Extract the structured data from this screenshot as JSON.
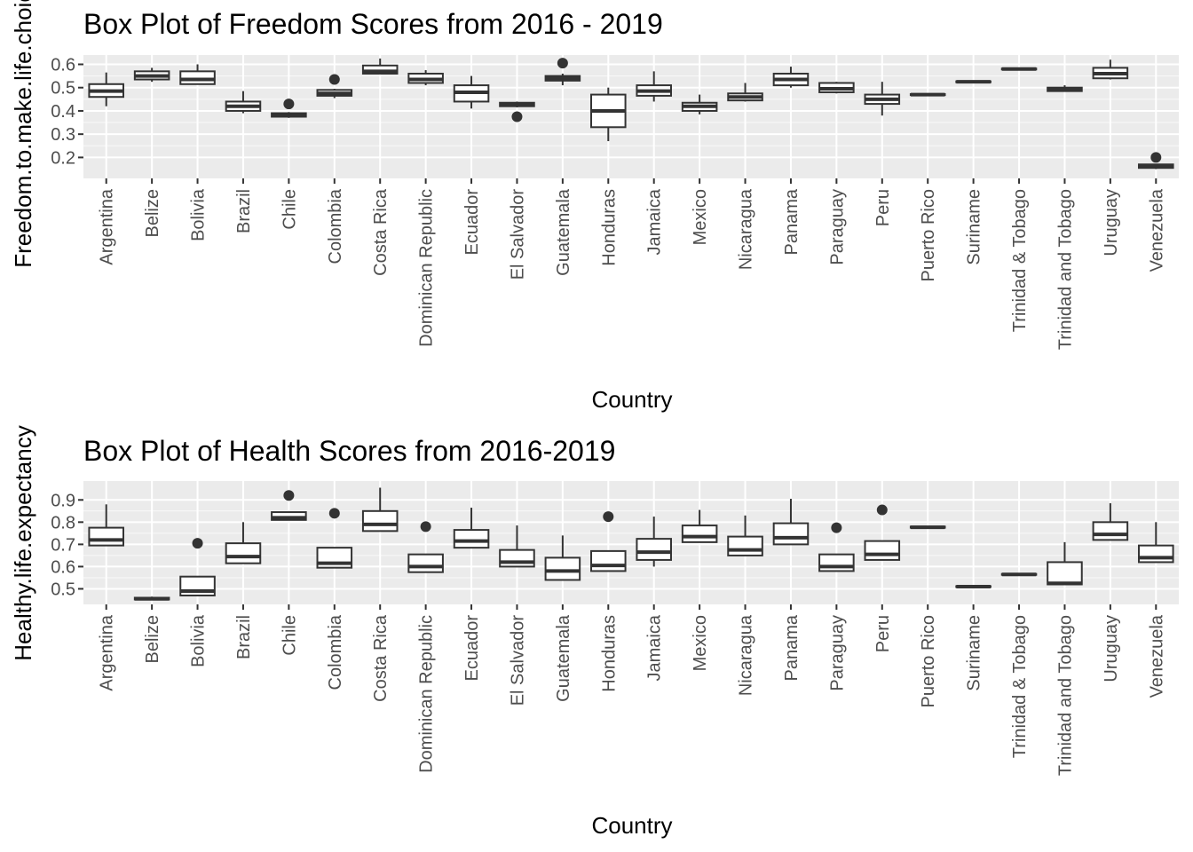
{
  "chart_data": [
    {
      "type": "boxplot",
      "title": "Box Plot of Freedom Scores from 2016 - 2019",
      "xlabel": "Country",
      "ylabel": "Freedom.to.make.life.choices",
      "ylim": [
        0.11,
        0.64
      ],
      "yticks": [
        0.2,
        0.3,
        0.4,
        0.5,
        0.6
      ],
      "ytick_labels": [
        "0.2",
        "0.3",
        "0.4",
        "0.5",
        "0.6"
      ],
      "grid": true,
      "categories": [
        "Argentina",
        "Belize",
        "Bolivia",
        "Brazil",
        "Chile",
        "Colombia",
        "Costa Rica",
        "Dominican Republic",
        "Ecuador",
        "El Salvador",
        "Guatemala",
        "Honduras",
        "Jamaica",
        "Mexico",
        "Nicaragua",
        "Panama",
        "Paraguay",
        "Peru",
        "Puerto Rico",
        "Suriname",
        "Trinidad & Tobago",
        "Trinidad and Tobago",
        "Uruguay",
        "Venezuela"
      ],
      "boxes": [
        {
          "min": 0.42,
          "q1": 0.46,
          "median": 0.485,
          "q3": 0.515,
          "max": 0.565,
          "outliers": []
        },
        {
          "min": 0.525,
          "q1": 0.535,
          "median": 0.55,
          "q3": 0.57,
          "max": 0.585,
          "outliers": []
        },
        {
          "min": 0.515,
          "q1": 0.515,
          "median": 0.535,
          "q3": 0.57,
          "max": 0.6,
          "outliers": []
        },
        {
          "min": 0.39,
          "q1": 0.4,
          "median": 0.42,
          "q3": 0.44,
          "max": 0.485,
          "outliers": []
        },
        {
          "min": 0.37,
          "q1": 0.375,
          "median": 0.38,
          "q3": 0.39,
          "max": 0.395,
          "outliers": [
            0.43
          ]
        },
        {
          "min": 0.455,
          "q1": 0.465,
          "median": 0.475,
          "q3": 0.49,
          "max": 0.495,
          "outliers": [
            0.535
          ]
        },
        {
          "min": 0.56,
          "q1": 0.56,
          "median": 0.57,
          "q3": 0.595,
          "max": 0.625,
          "outliers": []
        },
        {
          "min": 0.51,
          "q1": 0.52,
          "median": 0.535,
          "q3": 0.56,
          "max": 0.575,
          "outliers": []
        },
        {
          "min": 0.41,
          "q1": 0.44,
          "median": 0.48,
          "q3": 0.51,
          "max": 0.55,
          "outliers": []
        },
        {
          "min": 0.415,
          "q1": 0.42,
          "median": 0.425,
          "q3": 0.435,
          "max": 0.44,
          "outliers": [
            0.375
          ]
        },
        {
          "min": 0.51,
          "q1": 0.53,
          "median": 0.54,
          "q3": 0.55,
          "max": 0.56,
          "outliers": [
            0.605
          ]
        },
        {
          "min": 0.27,
          "q1": 0.33,
          "median": 0.4,
          "q3": 0.47,
          "max": 0.5,
          "outliers": []
        },
        {
          "min": 0.44,
          "q1": 0.465,
          "median": 0.485,
          "q3": 0.51,
          "max": 0.57,
          "outliers": []
        },
        {
          "min": 0.385,
          "q1": 0.4,
          "median": 0.42,
          "q3": 0.435,
          "max": 0.47,
          "outliers": []
        },
        {
          "min": 0.44,
          "q1": 0.445,
          "median": 0.46,
          "q3": 0.475,
          "max": 0.52,
          "outliers": []
        },
        {
          "min": 0.5,
          "q1": 0.51,
          "median": 0.535,
          "q3": 0.56,
          "max": 0.59,
          "outliers": []
        },
        {
          "min": 0.475,
          "q1": 0.48,
          "median": 0.495,
          "q3": 0.52,
          "max": 0.525,
          "outliers": []
        },
        {
          "min": 0.38,
          "q1": 0.43,
          "median": 0.45,
          "q3": 0.47,
          "max": 0.525,
          "outliers": []
        },
        {
          "min": 0.468,
          "q1": 0.468,
          "median": 0.47,
          "q3": 0.472,
          "max": 0.472,
          "outliers": []
        },
        {
          "min": 0.523,
          "q1": 0.523,
          "median": 0.525,
          "q3": 0.527,
          "max": 0.527,
          "outliers": []
        },
        {
          "min": 0.578,
          "q1": 0.578,
          "median": 0.58,
          "q3": 0.582,
          "max": 0.582,
          "outliers": []
        },
        {
          "min": 0.485,
          "q1": 0.485,
          "median": 0.495,
          "q3": 0.5,
          "max": 0.51,
          "outliers": []
        },
        {
          "min": 0.535,
          "q1": 0.54,
          "median": 0.56,
          "q3": 0.585,
          "max": 0.62,
          "outliers": []
        },
        {
          "min": 0.15,
          "q1": 0.155,
          "median": 0.16,
          "q3": 0.17,
          "max": 0.17,
          "outliers": [
            0.2
          ]
        }
      ]
    },
    {
      "type": "boxplot",
      "title": "Box Plot of Health Scores from 2016-2019",
      "xlabel": "Country",
      "ylabel": "Healthy.life.expectancy",
      "ylim": [
        0.43,
        0.985
      ],
      "yticks": [
        0.5,
        0.6,
        0.7,
        0.8,
        0.9
      ],
      "ytick_labels": [
        "0.5",
        "0.6",
        "0.7",
        "0.8",
        "0.9"
      ],
      "grid": true,
      "categories": [
        "Argentina",
        "Belize",
        "Bolivia",
        "Brazil",
        "Chile",
        "Colombia",
        "Costa Rica",
        "Dominican Republic",
        "Ecuador",
        "El Salvador",
        "Guatemala",
        "Honduras",
        "Jamaica",
        "Mexico",
        "Nicaragua",
        "Panama",
        "Paraguay",
        "Peru",
        "Puerto Rico",
        "Suriname",
        "Trinidad & Tobago",
        "Trinidad and Tobago",
        "Uruguay",
        "Venezuela"
      ],
      "boxes": [
        {
          "min": 0.695,
          "q1": 0.695,
          "median": 0.72,
          "q3": 0.775,
          "max": 0.88,
          "outliers": []
        },
        {
          "min": 0.45,
          "q1": 0.452,
          "median": 0.455,
          "q3": 0.46,
          "max": 0.465,
          "outliers": []
        },
        {
          "min": 0.47,
          "q1": 0.47,
          "median": 0.49,
          "q3": 0.555,
          "max": 0.555,
          "outliers": [
            0.705
          ]
        },
        {
          "min": 0.615,
          "q1": 0.615,
          "median": 0.645,
          "q3": 0.705,
          "max": 0.8,
          "outliers": []
        },
        {
          "min": 0.81,
          "q1": 0.81,
          "median": 0.82,
          "q3": 0.845,
          "max": 0.845,
          "outliers": [
            0.92
          ]
        },
        {
          "min": 0.595,
          "q1": 0.595,
          "median": 0.615,
          "q3": 0.685,
          "max": 0.685,
          "outliers": [
            0.84
          ]
        },
        {
          "min": 0.76,
          "q1": 0.76,
          "median": 0.79,
          "q3": 0.85,
          "max": 0.955,
          "outliers": []
        },
        {
          "min": 0.575,
          "q1": 0.575,
          "median": 0.6,
          "q3": 0.655,
          "max": 0.655,
          "outliers": [
            0.78
          ]
        },
        {
          "min": 0.685,
          "q1": 0.685,
          "median": 0.715,
          "q3": 0.765,
          "max": 0.865,
          "outliers": []
        },
        {
          "min": 0.6,
          "q1": 0.6,
          "median": 0.62,
          "q3": 0.675,
          "max": 0.785,
          "outliers": []
        },
        {
          "min": 0.54,
          "q1": 0.54,
          "median": 0.58,
          "q3": 0.64,
          "max": 0.74,
          "outliers": []
        },
        {
          "min": 0.58,
          "q1": 0.58,
          "median": 0.605,
          "q3": 0.67,
          "max": 0.67,
          "outliers": [
            0.825
          ]
        },
        {
          "min": 0.6,
          "q1": 0.63,
          "median": 0.665,
          "q3": 0.725,
          "max": 0.825,
          "outliers": []
        },
        {
          "min": 0.71,
          "q1": 0.71,
          "median": 0.735,
          "q3": 0.785,
          "max": 0.855,
          "outliers": []
        },
        {
          "min": 0.65,
          "q1": 0.65,
          "median": 0.675,
          "q3": 0.735,
          "max": 0.83,
          "outliers": []
        },
        {
          "min": 0.7,
          "q1": 0.7,
          "median": 0.73,
          "q3": 0.795,
          "max": 0.905,
          "outliers": []
        },
        {
          "min": 0.58,
          "q1": 0.58,
          "median": 0.6,
          "q3": 0.655,
          "max": 0.655,
          "outliers": [
            0.775
          ]
        },
        {
          "min": 0.63,
          "q1": 0.63,
          "median": 0.655,
          "q3": 0.715,
          "max": 0.715,
          "outliers": [
            0.855
          ]
        },
        {
          "min": 0.775,
          "q1": 0.775,
          "median": 0.777,
          "q3": 0.78,
          "max": 0.78,
          "outliers": []
        },
        {
          "min": 0.508,
          "q1": 0.508,
          "median": 0.51,
          "q3": 0.512,
          "max": 0.512,
          "outliers": []
        },
        {
          "min": 0.563,
          "q1": 0.563,
          "median": 0.565,
          "q3": 0.567,
          "max": 0.567,
          "outliers": []
        },
        {
          "min": 0.52,
          "q1": 0.52,
          "median": 0.525,
          "q3": 0.62,
          "max": 0.71,
          "outliers": []
        },
        {
          "min": 0.72,
          "q1": 0.72,
          "median": 0.745,
          "q3": 0.8,
          "max": 0.885,
          "outliers": []
        },
        {
          "min": 0.62,
          "q1": 0.62,
          "median": 0.64,
          "q3": 0.695,
          "max": 0.8,
          "outliers": []
        }
      ]
    }
  ]
}
